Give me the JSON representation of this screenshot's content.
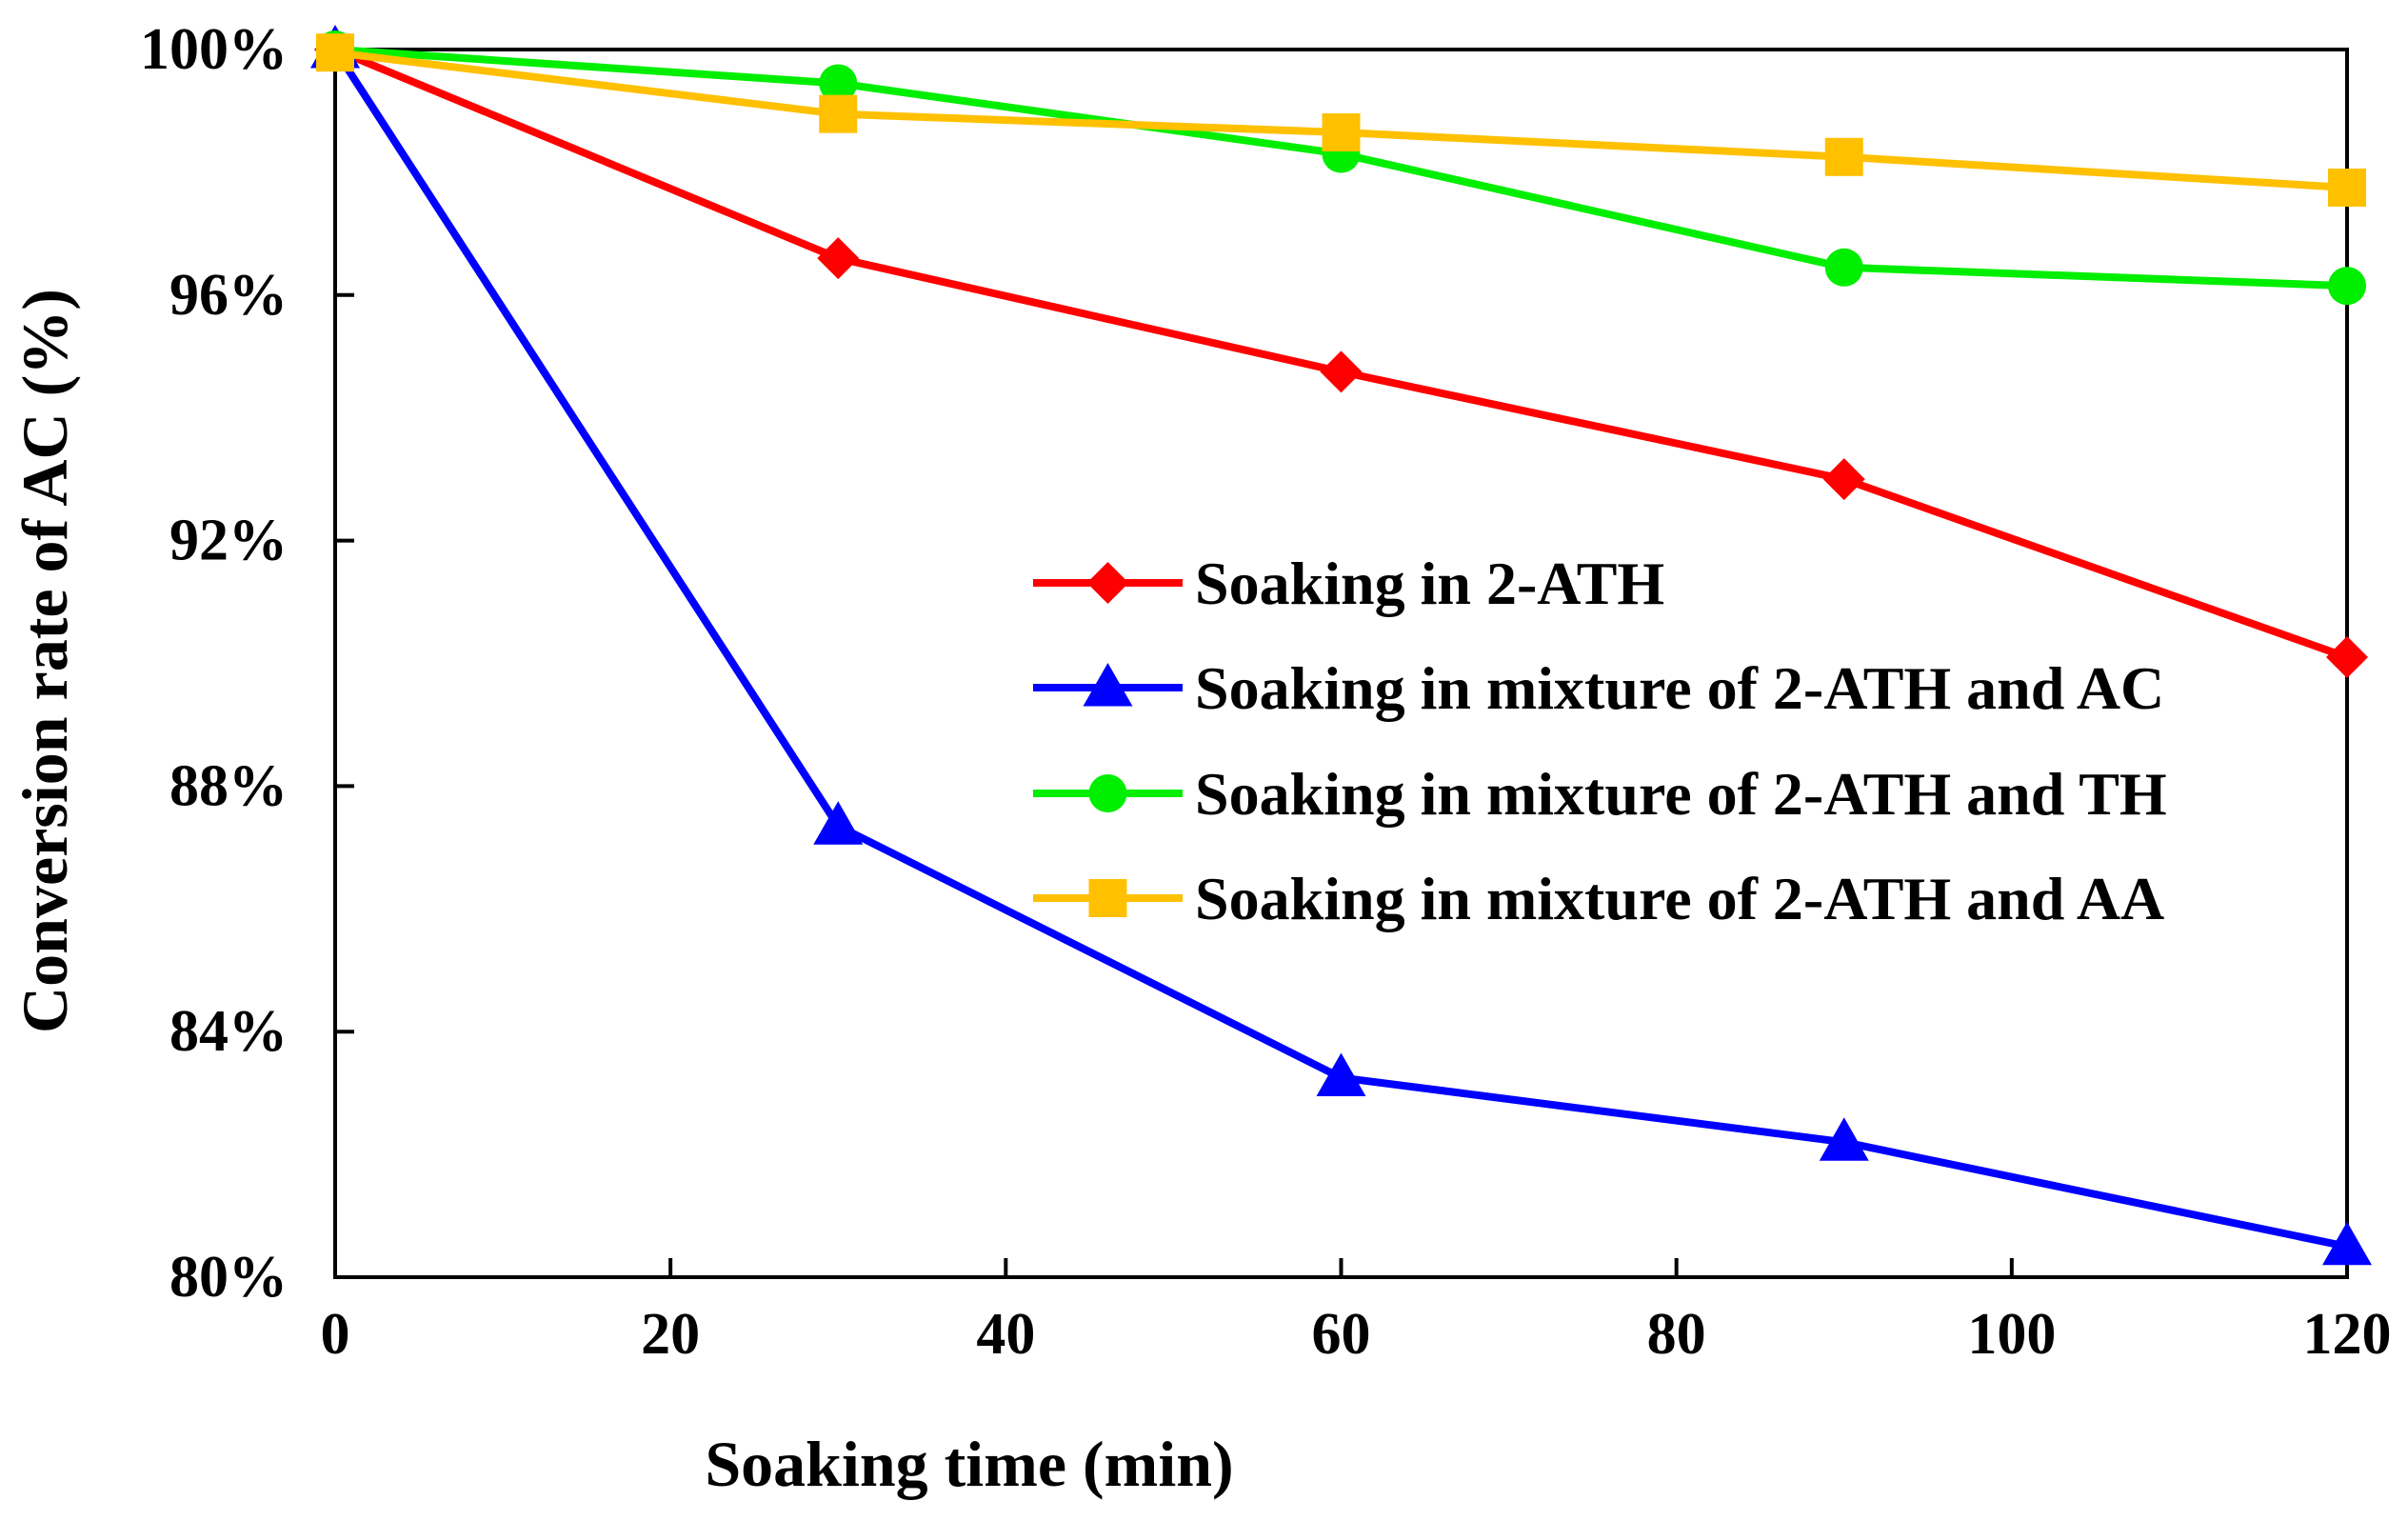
{
  "chart_data": {
    "type": "line",
    "title": "",
    "xlabel": "Soaking time (min)",
    "ylabel": "Conversion rate of AC (%)",
    "xlim": [
      0,
      120
    ],
    "ylim": [
      80,
      100
    ],
    "x_ticks": [
      0,
      20,
      40,
      60,
      80,
      100,
      120
    ],
    "x_tick_labels": [
      "0",
      "20",
      "40",
      "60",
      "80",
      "100",
      "120"
    ],
    "y_ticks": [
      80,
      84,
      88,
      92,
      96,
      100
    ],
    "y_tick_labels": [
      "80%",
      "84%",
      "88%",
      "92%",
      "96%",
      "100%"
    ],
    "grid": false,
    "legend_position": "center-right",
    "x": [
      0,
      30,
      60,
      90,
      120
    ],
    "series": [
      {
        "name": "Soaking in 2-ATH",
        "color": "#ff0000",
        "marker": "diamond",
        "values": [
          100.0,
          96.6,
          94.75,
          93.0,
          90.1
        ]
      },
      {
        "name": "Soaking in mixture of 2-ATH and AC",
        "color": "#0000ff",
        "marker": "triangle",
        "values": [
          100.0,
          87.35,
          83.25,
          82.2,
          80.5
        ]
      },
      {
        "name": "Soaking in mixture of 2-ATH and TH",
        "color": "#00ee00",
        "marker": "circle",
        "values": [
          100.0,
          99.45,
          98.3,
          96.45,
          96.15
        ]
      },
      {
        "name": "Soaking in mixture of 2-ATH and AA",
        "color": "#ffc000",
        "marker": "square",
        "values": [
          99.95,
          98.95,
          98.65,
          98.25,
          97.75
        ]
      }
    ]
  }
}
